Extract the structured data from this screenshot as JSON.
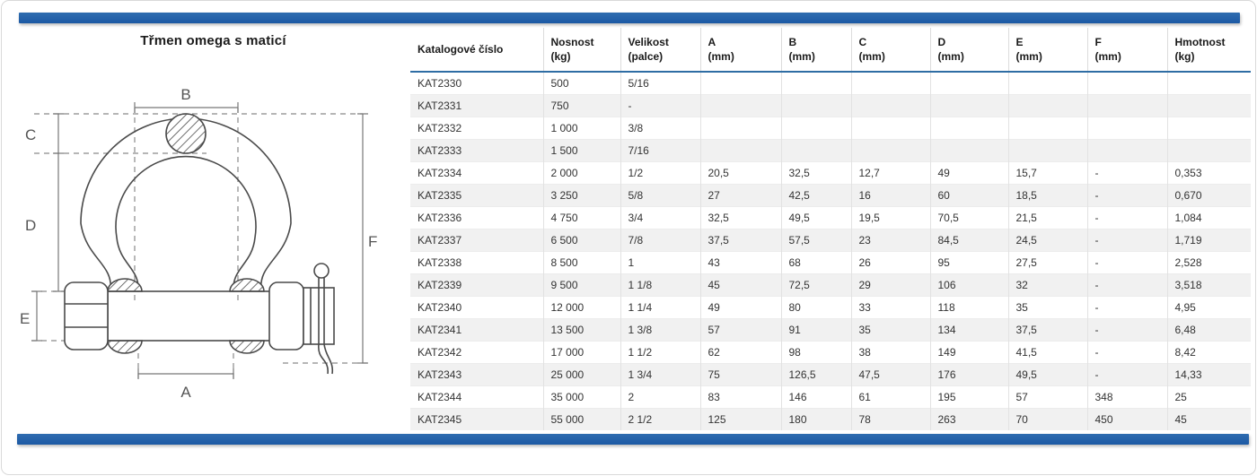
{
  "title": "Třmen omega s maticí",
  "colors": {
    "bar_blue_top": "#2f6cb0",
    "bar_blue_bottom": "#1c59a4",
    "header_rule_blue": "#2e6da4",
    "row_stripe": "#f1f1f1"
  },
  "drawing": {
    "description": "technical-drawing-omega-shackle-with-nut-and-cotter-pin",
    "labels": {
      "a": "A",
      "b": "B",
      "c": "C",
      "d": "D",
      "e": "E",
      "f": "F"
    }
  },
  "table": {
    "columns": [
      "Katalogové číslo",
      "Nosnost\n(kg)",
      "Velikost\n(palce)",
      "A\n(mm)",
      "B\n(mm)",
      "C\n(mm)",
      "D\n(mm)",
      "E\n(mm)",
      "F\n(mm)",
      "Hmotnost\n(kg)"
    ],
    "rows": [
      [
        "KAT2330",
        "500",
        "5/16",
        "",
        "",
        "",
        "",
        "",
        "",
        ""
      ],
      [
        "KAT2331",
        "750",
        "-",
        "",
        "",
        "",
        "",
        "",
        "",
        ""
      ],
      [
        "KAT2332",
        "1 000",
        "3/8",
        "",
        "",
        "",
        "",
        "",
        "",
        ""
      ],
      [
        "KAT2333",
        "1 500",
        "7/16",
        "",
        "",
        "",
        "",
        "",
        "",
        ""
      ],
      [
        "KAT2334",
        "2 000",
        "1/2",
        "20,5",
        "32,5",
        "12,7",
        "49",
        "15,7",
        "-",
        "0,353"
      ],
      [
        "KAT2335",
        "3 250",
        "5/8",
        "27",
        "42,5",
        "16",
        "60",
        "18,5",
        "-",
        "0,670"
      ],
      [
        "KAT2336",
        "4 750",
        "3/4",
        "32,5",
        "49,5",
        "19,5",
        "70,5",
        "21,5",
        "-",
        "1,084"
      ],
      [
        "KAT2337",
        "6 500",
        "7/8",
        "37,5",
        "57,5",
        "23",
        "84,5",
        "24,5",
        "-",
        "1,719"
      ],
      [
        "KAT2338",
        "8 500",
        "1",
        "43",
        "68",
        "26",
        "95",
        "27,5",
        "-",
        "2,528"
      ],
      [
        "KAT2339",
        "9 500",
        "1 1/8",
        "45",
        "72,5",
        "29",
        "106",
        "32",
        "-",
        "3,518"
      ],
      [
        "KAT2340",
        "12 000",
        "1 1/4",
        "49",
        "80",
        "33",
        "118",
        "35",
        "-",
        "4,95"
      ],
      [
        "KAT2341",
        "13 500",
        "1 3/8",
        "57",
        "91",
        "35",
        "134",
        "37,5",
        "-",
        "6,48"
      ],
      [
        "KAT2342",
        "17 000",
        "1 1/2",
        "62",
        "98",
        "38",
        "149",
        "41,5",
        "-",
        "8,42"
      ],
      [
        "KAT2343",
        "25 000",
        "1 3/4",
        "75",
        "126,5",
        "47,5",
        "176",
        "49,5",
        "-",
        "14,33"
      ],
      [
        "KAT2344",
        "35 000",
        "2",
        "83",
        "146",
        "61",
        "195",
        "57",
        "348",
        "25"
      ],
      [
        "KAT2345",
        "55 000",
        "2 1/2",
        "125",
        "180",
        "78",
        "263",
        "70",
        "450",
        "45"
      ]
    ]
  }
}
